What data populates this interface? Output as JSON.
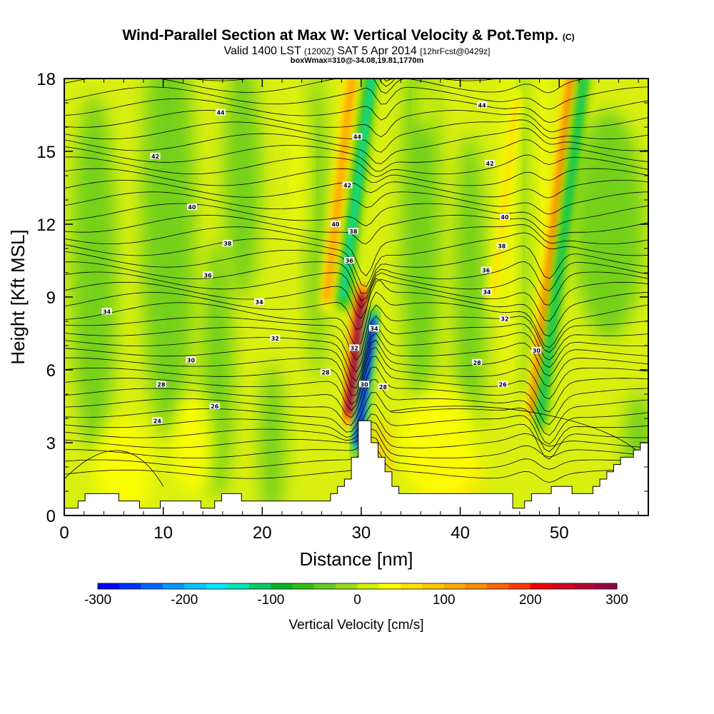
{
  "chart_data": {
    "type": "heatmap",
    "title": "Wind-Parallel Section at Max W: Vertical Velocity & Pot.Temp.",
    "title_mark": "(C)",
    "subtitle_parts": [
      "Valid 1400 LST",
      "(1200Z)",
      "SAT 5 Apr 2014",
      "[12hrFcst@0429z]"
    ],
    "subtitle2": "boxWmax=310@-34.08,19.81,1770m",
    "xlabel": "Distance [nm]",
    "ylabel": "Height [Kft MSL]",
    "xlim": [
      0,
      59
    ],
    "ylim": [
      0,
      18
    ],
    "x_ticks": [
      0,
      10,
      20,
      30,
      40,
      50
    ],
    "y_ticks": [
      0,
      3,
      6,
      9,
      12,
      15,
      18
    ],
    "colorbar": {
      "label": "Vertical Velocity [cm/s]",
      "range": [
        -300,
        300
      ],
      "ticks": [
        -300,
        -200,
        -100,
        0,
        100,
        200,
        300
      ],
      "colors": [
        "#0000ff",
        "#0033ff",
        "#0066ff",
        "#0099ff",
        "#00c4ff",
        "#00e8ff",
        "#00e6b4",
        "#00cc66",
        "#00b428",
        "#32be14",
        "#64cc1e",
        "#96dc1e",
        "#d2f00a",
        "#ffff00",
        "#ffe100",
        "#ffc800",
        "#ffa500",
        "#ff8c00",
        "#ff6400",
        "#ff3c00",
        "#f00000",
        "#d2001e",
        "#b40032",
        "#960046"
      ]
    },
    "updrafts": [
      {
        "x": 29.4,
        "y_range": [
          4.3,
          9.0
        ],
        "peak_cm_s": 280
      },
      {
        "x": 27.8,
        "y_range": [
          9.0,
          18.0
        ],
        "peak_cm_s": 120
      },
      {
        "x": 49.2,
        "y_range": [
          4.3,
          18.0
        ],
        "peak_cm_s": 140
      },
      {
        "x": 44.5,
        "y_range": [
          9.0,
          17.0
        ],
        "peak_cm_s": 60
      }
    ],
    "downdrafts": [
      {
        "x": 30.4,
        "y_range": [
          3.0,
          8.0
        ],
        "peak_cm_s": -280
      },
      {
        "x": 29.6,
        "y_range": [
          9.0,
          18.0
        ],
        "peak_cm_s": -150
      },
      {
        "x": 50.3,
        "y_range": [
          4.0,
          18.0
        ],
        "peak_cm_s": -110
      }
    ],
    "isentropes_labels": [
      {
        "text": "44",
        "x": 15.8,
        "y": 16.6
      },
      {
        "text": "44",
        "x": 29.6,
        "y": 15.6
      },
      {
        "text": "44",
        "x": 42.2,
        "y": 16.9
      },
      {
        "text": "42",
        "x": 9.2,
        "y": 14.8
      },
      {
        "text": "42",
        "x": 28.6,
        "y": 13.6
      },
      {
        "text": "42",
        "x": 43.0,
        "y": 14.5
      },
      {
        "text": "40",
        "x": 12.9,
        "y": 12.7
      },
      {
        "text": "40",
        "x": 27.4,
        "y": 12.0
      },
      {
        "text": "40",
        "x": 44.5,
        "y": 12.3
      },
      {
        "text": "38",
        "x": 16.5,
        "y": 11.2
      },
      {
        "text": "38",
        "x": 29.2,
        "y": 11.7
      },
      {
        "text": "38",
        "x": 44.2,
        "y": 11.1
      },
      {
        "text": "36",
        "x": 14.5,
        "y": 9.9
      },
      {
        "text": "36",
        "x": 28.8,
        "y": 10.5
      },
      {
        "text": "36",
        "x": 42.6,
        "y": 10.1
      },
      {
        "text": "34",
        "x": 4.3,
        "y": 8.4
      },
      {
        "text": "34",
        "x": 19.7,
        "y": 8.8
      },
      {
        "text": "34",
        "x": 42.7,
        "y": 9.2
      },
      {
        "text": "34",
        "x": 31.3,
        "y": 7.7
      },
      {
        "text": "32",
        "x": 21.3,
        "y": 7.3
      },
      {
        "text": "32",
        "x": 44.5,
        "y": 8.1
      },
      {
        "text": "32",
        "x": 29.3,
        "y": 6.9
      },
      {
        "text": "30",
        "x": 12.8,
        "y": 6.4
      },
      {
        "text": "30",
        "x": 47.7,
        "y": 6.8
      },
      {
        "text": "30",
        "x": 30.3,
        "y": 5.4
      },
      {
        "text": "28",
        "x": 9.8,
        "y": 5.4
      },
      {
        "text": "28",
        "x": 26.4,
        "y": 5.9
      },
      {
        "text": "28",
        "x": 32.2,
        "y": 5.3
      },
      {
        "text": "28",
        "x": 41.7,
        "y": 6.3
      },
      {
        "text": "26",
        "x": 15.2,
        "y": 4.5
      },
      {
        "text": "26",
        "x": 44.3,
        "y": 5.4
      },
      {
        "text": "24",
        "x": 9.4,
        "y": 3.9
      }
    ],
    "terrain_kft": [
      [
        0,
        0.3
      ],
      [
        1.4,
        0.3
      ],
      [
        1.4,
        0.6
      ],
      [
        2.1,
        0.6
      ],
      [
        2.1,
        0.9
      ],
      [
        5.5,
        0.9
      ],
      [
        5.5,
        0.6
      ],
      [
        7.6,
        0.6
      ],
      [
        7.6,
        0.3
      ],
      [
        9.7,
        0.3
      ],
      [
        9.7,
        0.6
      ],
      [
        13.8,
        0.6
      ],
      [
        13.8,
        0.3
      ],
      [
        15.2,
        0.3
      ],
      [
        15.2,
        0.6
      ],
      [
        15.9,
        0.6
      ],
      [
        15.9,
        0.9
      ],
      [
        17.9,
        0.9
      ],
      [
        17.9,
        0.6
      ],
      [
        26.9,
        0.6
      ],
      [
        26.9,
        0.9
      ],
      [
        27.6,
        0.9
      ],
      [
        27.6,
        1.2
      ],
      [
        28.3,
        1.2
      ],
      [
        28.3,
        1.5
      ],
      [
        29.0,
        1.5
      ],
      [
        29.0,
        2.4
      ],
      [
        29.7,
        2.4
      ],
      [
        29.7,
        3.9
      ],
      [
        31.0,
        3.9
      ],
      [
        31.0,
        3.0
      ],
      [
        31.7,
        3.0
      ],
      [
        31.7,
        2.4
      ],
      [
        32.4,
        2.4
      ],
      [
        32.4,
        1.8
      ],
      [
        33.1,
        1.8
      ],
      [
        33.1,
        1.2
      ],
      [
        33.8,
        1.2
      ],
      [
        33.8,
        0.9
      ],
      [
        45.3,
        0.9
      ],
      [
        45.3,
        0.3
      ],
      [
        46.5,
        0.3
      ],
      [
        46.5,
        0.6
      ],
      [
        47.2,
        0.6
      ],
      [
        47.2,
        0.9
      ],
      [
        49.2,
        0.9
      ],
      [
        49.2,
        1.2
      ],
      [
        51.3,
        1.2
      ],
      [
        51.3,
        0.9
      ],
      [
        53.4,
        0.9
      ],
      [
        53.4,
        1.2
      ],
      [
        54.1,
        1.2
      ],
      [
        54.1,
        1.5
      ],
      [
        54.8,
        1.5
      ],
      [
        54.8,
        1.8
      ],
      [
        55.5,
        1.8
      ],
      [
        55.5,
        2.1
      ],
      [
        56.2,
        2.1
      ],
      [
        56.2,
        2.4
      ],
      [
        57.5,
        2.4
      ],
      [
        57.5,
        2.7
      ],
      [
        58.2,
        2.7
      ],
      [
        58.2,
        3.0
      ],
      [
        59,
        3.0
      ]
    ]
  }
}
